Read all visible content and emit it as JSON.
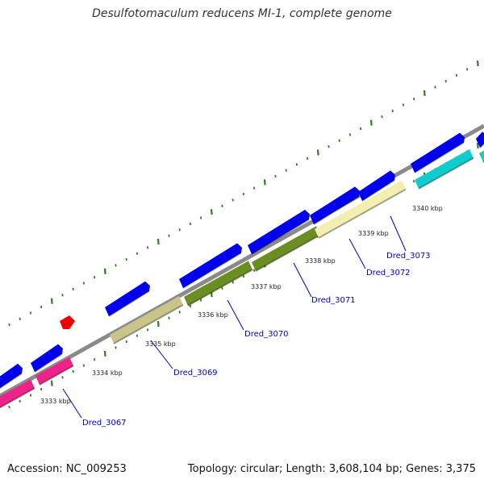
{
  "title": "Desulfotomaculum reducens MI-1, complete genome",
  "footer": {
    "accession": "Accession: NC_009253",
    "summary": "Topology: circular; Length: 3,608,104 bp; Genes: 3,375"
  },
  "kbp_labels": [
    "3333 kbp",
    "3334 kbp",
    "3335 kbp",
    "3336 kbp",
    "3337 kbp",
    "3338 kbp",
    "3339 kbp",
    "3340 kbp"
  ],
  "gene_labels": [
    "Dred_3067",
    "Dred_3069",
    "Dred_3070",
    "Dred_3071",
    "Dred_3072",
    "Dred_3073"
  ],
  "colors": {
    "backbone": "#8a8a8a",
    "cds_forward": "#0000ee",
    "ticks": "#2e7d20",
    "red_feature": "#ee0000",
    "magenta_feature": "#ee2288",
    "khaki_feature": "#c8c48a",
    "olive_feature": "#6b8e23",
    "lightyellow_feature": "#f3efb0",
    "cyan_feature": "#11cccc",
    "label_line": "#0000cc"
  }
}
